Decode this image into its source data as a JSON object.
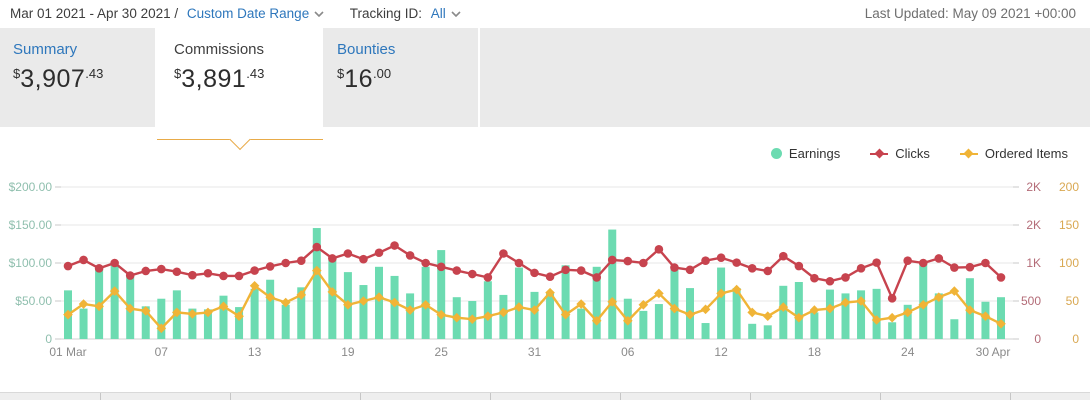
{
  "header": {
    "date_range": "Mar 01 2021 - Apr 30 2021 /",
    "date_range_link": "Custom Date Range",
    "tracking_label": "Tracking ID:",
    "tracking_value": "All",
    "last_updated": "Last Updated: May 09 2021 +00:00"
  },
  "tabs": [
    {
      "label": "Summary",
      "currency": "$",
      "amount": "3,907",
      "cents": ".43",
      "selected": false
    },
    {
      "label": "Commissions",
      "currency": "$",
      "amount": "3,891",
      "cents": ".43",
      "selected": true
    },
    {
      "label": "Bounties",
      "currency": "$",
      "amount": "16",
      "cents": ".00",
      "selected": false
    }
  ],
  "colors": {
    "link_blue": "#2e77bc",
    "tab_border_orange": "#e8ab49",
    "earnings_teal": "#6cdbb1",
    "clicks_red": "#c7434e",
    "ordered_orange": "#f0b437"
  },
  "chart_data": {
    "type": "composite",
    "x_tick_labels": [
      {
        "index": 0,
        "label": "01 Mar"
      },
      {
        "index": 6,
        "label": "07"
      },
      {
        "index": 12,
        "label": "13"
      },
      {
        "index": 18,
        "label": "19"
      },
      {
        "index": 24,
        "label": "25"
      },
      {
        "index": 30,
        "label": "31"
      },
      {
        "index": 36,
        "label": "06"
      },
      {
        "index": 42,
        "label": "12"
      },
      {
        "index": 48,
        "label": "18"
      },
      {
        "index": 54,
        "label": "24"
      },
      {
        "index": 60,
        "label": "30 Apr"
      }
    ],
    "dates": [
      "Mar 01",
      "Mar 02",
      "Mar 03",
      "Mar 04",
      "Mar 05",
      "Mar 06",
      "Mar 07",
      "Mar 08",
      "Mar 09",
      "Mar 10",
      "Mar 11",
      "Mar 12",
      "Mar 13",
      "Mar 14",
      "Mar 15",
      "Mar 16",
      "Mar 17",
      "Mar 18",
      "Mar 19",
      "Mar 20",
      "Mar 21",
      "Mar 22",
      "Mar 23",
      "Mar 24",
      "Mar 25",
      "Mar 26",
      "Mar 27",
      "Mar 28",
      "Mar 29",
      "Mar 30",
      "Mar 31",
      "Apr 01",
      "Apr 02",
      "Apr 03",
      "Apr 04",
      "Apr 05",
      "Apr 06",
      "Apr 07",
      "Apr 08",
      "Apr 09",
      "Apr 10",
      "Apr 11",
      "Apr 12",
      "Apr 13",
      "Apr 14",
      "Apr 15",
      "Apr 16",
      "Apr 17",
      "Apr 18",
      "Apr 19",
      "Apr 20",
      "Apr 21",
      "Apr 22",
      "Apr 23",
      "Apr 24",
      "Apr 25",
      "Apr 26",
      "Apr 27",
      "Apr 28",
      "Apr 29",
      "Apr 30"
    ],
    "series": [
      {
        "name": "Earnings",
        "type": "bar",
        "axis": "dollars",
        "color": "#6cdbb1",
        "marker": "circle-legend",
        "values": [
          64,
          40,
          92,
          97,
          82,
          43,
          53,
          64,
          40,
          39,
          57,
          42,
          66,
          78,
          45,
          68,
          146,
          104,
          88,
          71,
          95,
          83,
          60,
          95,
          117,
          55,
          50,
          76,
          58,
          94,
          62,
          62,
          97,
          40,
          95,
          144,
          53,
          37,
          46,
          94,
          67,
          21,
          94,
          67,
          20,
          18,
          70,
          75,
          35,
          65,
          60,
          64,
          66,
          22,
          45,
          100,
          60,
          26,
          80,
          49,
          55
        ]
      },
      {
        "name": "Clicks",
        "type": "line",
        "axis": "clicks",
        "color": "#c7434e",
        "marker": "circle",
        "values": [
          960,
          1040,
          930,
          1000,
          835,
          895,
          920,
          885,
          840,
          865,
          830,
          830,
          900,
          955,
          1000,
          1030,
          1210,
          1060,
          1125,
          1050,
          1135,
          1230,
          1100,
          1000,
          950,
          900,
          855,
          810,
          1125,
          1000,
          870,
          820,
          910,
          900,
          810,
          1040,
          1025,
          1000,
          1180,
          940,
          910,
          1030,
          1070,
          1005,
          930,
          895,
          1090,
          960,
          800,
          760,
          810,
          930,
          1005,
          535,
          1030,
          1000,
          1060,
          940,
          945,
          1000,
          810
        ]
      },
      {
        "name": "Ordered Items",
        "type": "line",
        "axis": "ordered",
        "color": "#f0b437",
        "marker": "diamond",
        "values": [
          32,
          46,
          43,
          63,
          40,
          37,
          14,
          35,
          33,
          35,
          43,
          30,
          70,
          55,
          48,
          58,
          90,
          62,
          45,
          50,
          55,
          48,
          38,
          45,
          32,
          28,
          26,
          30,
          35,
          42,
          38,
          61,
          32,
          46,
          24,
          49,
          24,
          45,
          60,
          40,
          32,
          39,
          60,
          65,
          35,
          30,
          42,
          28,
          38,
          40,
          48,
          50,
          25,
          28,
          35,
          45,
          55,
          63,
          38,
          30,
          20
        ]
      }
    ],
    "left_axis": {
      "ticks": [
        "$200.00",
        "$150.00",
        "$100.00",
        "$50.00",
        "0"
      ],
      "min": 0,
      "max": 200,
      "color": "#8fbfae"
    },
    "right_axis_clicks": {
      "ticks": [
        "2K",
        "2K",
        "1K",
        "500",
        "0"
      ],
      "min": 0,
      "max": 2000,
      "color": "#b36b77"
    },
    "right_axis_ordered": {
      "ticks": [
        "200",
        "150",
        "100",
        "50",
        "0"
      ],
      "min": 0,
      "max": 200,
      "color": "#d9a852"
    },
    "grid": true,
    "legend_position": "top-right"
  }
}
